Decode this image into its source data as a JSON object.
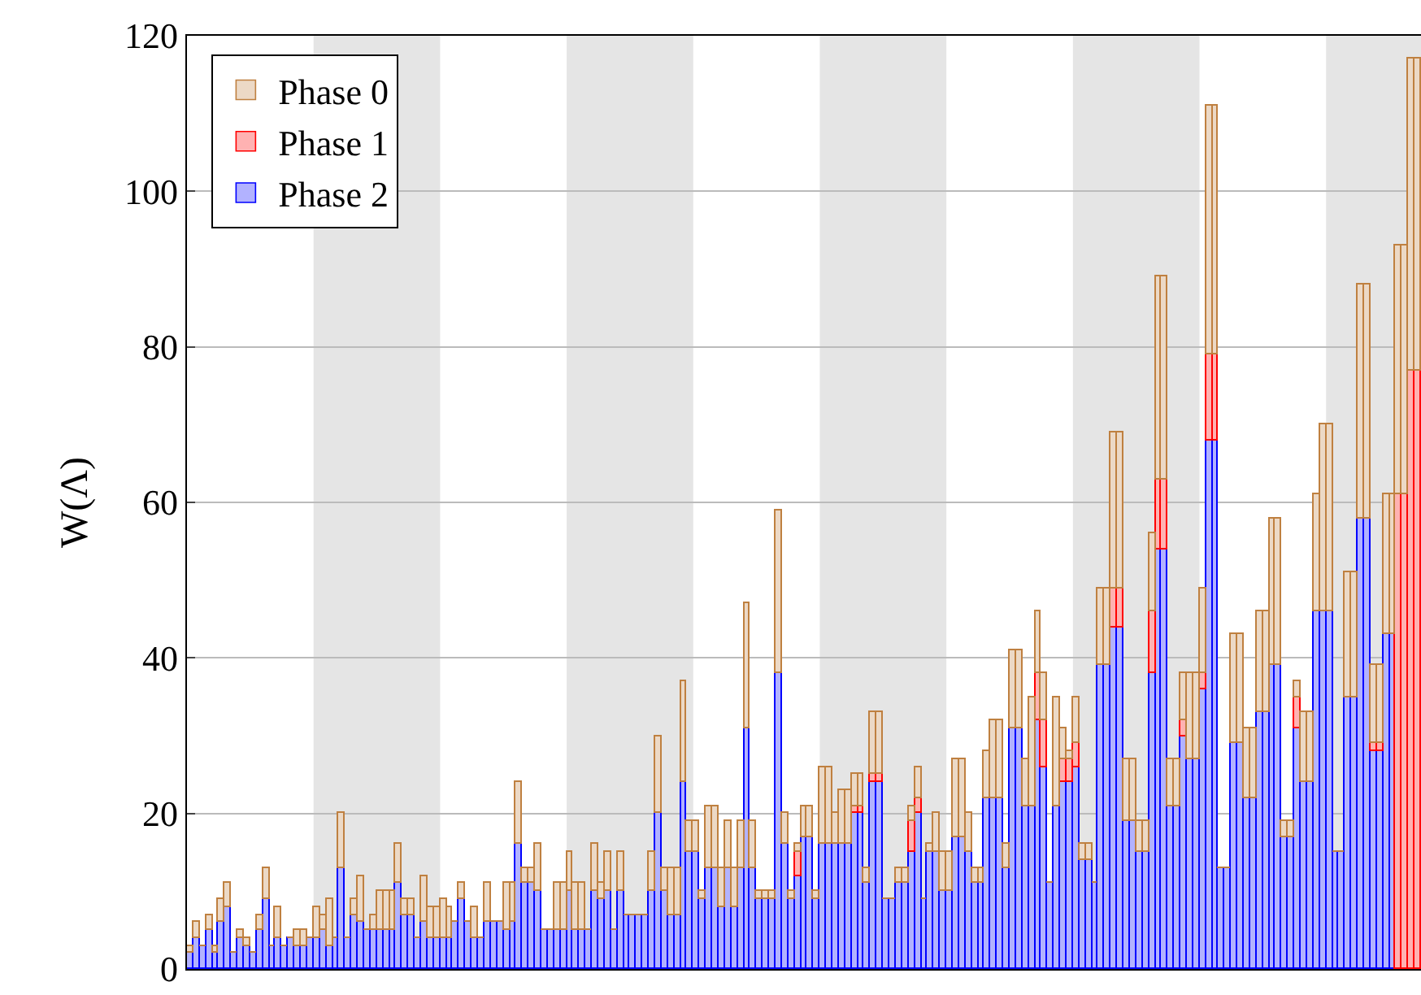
{
  "chart_data": {
    "type": "bar",
    "stacked": true,
    "ylabel": "W(Λ)",
    "categories": [
      null,
      null,
      null,
      null,
      null,
      null,
      null,
      null,
      null,
      null,
      null,
      null,
      null,
      null,
      null,
      null,
      null,
      null,
      null,
      null,
      null,
      null,
      null,
      null,
      null,
      null,
      null,
      null,
      null,
      null,
      null,
      null,
      null,
      null,
      null,
      null,
      null,
      null,
      null,
      null,
      null,
      null,
      null,
      null,
      null,
      null,
      null,
      null,
      null,
      null,
      null,
      null,
      null,
      null,
      null,
      null,
      null,
      null,
      null,
      null,
      null,
      null,
      null,
      null,
      null,
      null,
      null,
      null,
      null,
      null,
      null,
      null,
      null,
      null,
      null,
      null,
      null,
      null,
      null,
      null,
      null,
      null,
      null,
      null,
      null,
      null,
      null,
      null,
      null,
      null,
      null,
      null,
      null,
      null,
      null,
      null,
      null,
      null,
      null,
      null,
      null,
      null,
      null,
      null,
      null,
      null,
      null,
      null,
      null,
      null,
      null,
      null,
      null,
      null,
      null,
      null,
      null,
      null,
      null,
      null,
      null,
      null,
      null,
      null,
      null,
      null,
      null,
      null,
      null,
      null,
      null,
      null,
      null,
      null,
      null,
      null,
      null,
      null,
      null,
      null,
      null,
      null,
      null,
      null,
      null,
      null,
      null,
      null,
      null,
      null,
      null,
      null,
      null,
      null,
      null,
      null,
      null,
      null,
      null,
      null,
      null,
      null,
      null,
      null,
      null,
      null,
      null,
      null,
      null,
      null,
      null,
      null,
      null,
      null,
      null,
      null,
      null,
      null,
      null,
      null,
      null,
      null,
      null,
      null,
      null,
      null,
      null,
      null,
      null,
      null,
      null,
      null,
      null,
      null,
      null
    ],
    "series": [
      {
        "name": "Phase 2",
        "color": "#0000ff",
        "values": [
          2,
          4,
          3,
          5,
          2,
          6,
          8,
          2,
          4,
          3,
          2,
          5,
          9,
          3,
          4,
          3,
          4,
          3,
          3,
          4,
          4,
          5,
          3,
          4,
          13,
          4,
          7,
          6,
          5,
          5,
          5,
          5,
          5,
          11,
          7,
          7,
          4,
          6,
          4,
          4,
          4,
          4,
          6,
          9,
          6,
          4,
          4,
          6,
          6,
          6,
          5,
          6,
          16,
          11,
          11,
          10,
          5,
          5,
          5,
          5,
          10,
          5,
          5,
          5,
          10,
          9,
          10,
          5,
          10,
          7,
          7,
          7,
          7,
          10,
          20,
          10,
          7,
          7,
          24,
          15,
          15,
          9,
          13,
          13,
          8,
          13,
          8,
          13,
          31,
          13,
          9,
          9,
          9,
          38,
          16,
          9,
          12,
          17,
          17,
          9,
          16,
          16,
          16,
          16,
          16,
          20,
          20,
          11,
          24,
          24,
          9,
          9,
          11,
          11,
          15,
          20,
          9,
          15,
          15,
          10,
          10,
          17,
          17,
          15,
          11,
          11,
          22,
          22,
          22,
          13,
          31,
          31,
          21,
          21,
          32,
          26,
          11,
          21,
          24,
          24,
          26,
          14,
          14,
          11,
          39,
          39,
          44,
          44,
          19,
          19,
          15,
          15,
          38,
          54,
          54,
          21,
          21,
          30,
          27,
          27,
          36,
          68,
          68,
          13,
          13,
          29,
          29,
          22,
          22,
          33,
          33,
          39,
          39,
          17,
          17,
          31,
          24,
          24,
          46,
          46,
          46,
          15,
          15,
          35,
          35,
          58,
          58,
          28,
          28,
          43,
          43,
          0,
          0,
          0,
          0
        ]
      },
      {
        "name": "Phase 1",
        "color": "#ff0000",
        "values": [
          0,
          0,
          0,
          0,
          0,
          0,
          0,
          0,
          0,
          0,
          0,
          0,
          0,
          0,
          0,
          0,
          0,
          0,
          0,
          0,
          0,
          0,
          0,
          0,
          0,
          0,
          0,
          0,
          0,
          0,
          0,
          0,
          0,
          0,
          0,
          0,
          0,
          0,
          0,
          0,
          0,
          0,
          0,
          0,
          0,
          0,
          0,
          0,
          0,
          0,
          0,
          0,
          0,
          0,
          0,
          0,
          0,
          0,
          0,
          0,
          0,
          0,
          0,
          0,
          0,
          0,
          0,
          0,
          0,
          0,
          0,
          0,
          0,
          0,
          0,
          0,
          0,
          0,
          0,
          0,
          0,
          0,
          0,
          0,
          0,
          0,
          0,
          0,
          0,
          0,
          0,
          0,
          0,
          0,
          0,
          0,
          3,
          0,
          0,
          0,
          0,
          0,
          0,
          0,
          0,
          1,
          1,
          0,
          1,
          1,
          0,
          0,
          0,
          0,
          4,
          2,
          0,
          0,
          0,
          0,
          0,
          0,
          0,
          0,
          0,
          0,
          0,
          0,
          0,
          0,
          0,
          0,
          0,
          0,
          6,
          6,
          0,
          0,
          3,
          3,
          3,
          0,
          0,
          0,
          0,
          0,
          5,
          5,
          0,
          0,
          0,
          0,
          8,
          9,
          9,
          0,
          0,
          2,
          0,
          0,
          2,
          11,
          11,
          0,
          0,
          0,
          0,
          0,
          0,
          0,
          0,
          0,
          0,
          0,
          0,
          4,
          0,
          0,
          0,
          0,
          0,
          0,
          0,
          0,
          0,
          0,
          0,
          1,
          1,
          0,
          0,
          61,
          61,
          77,
          77
        ]
      },
      {
        "name": "Phase 0",
        "color": "#bf8040",
        "values": [
          1,
          2,
          0,
          2,
          1,
          3,
          3,
          0,
          1,
          1,
          0,
          2,
          4,
          0,
          4,
          0,
          0,
          2,
          2,
          0,
          4,
          2,
          6,
          0,
          7,
          0,
          2,
          6,
          0,
          2,
          5,
          5,
          5,
          5,
          2,
          2,
          0,
          6,
          4,
          4,
          5,
          4,
          0,
          2,
          0,
          4,
          0,
          5,
          0,
          0,
          6,
          5,
          8,
          2,
          2,
          6,
          0,
          0,
          6,
          6,
          5,
          6,
          6,
          0,
          6,
          2,
          5,
          0,
          5,
          0,
          0,
          0,
          0,
          5,
          10,
          3,
          6,
          6,
          13,
          4,
          4,
          1,
          8,
          8,
          5,
          6,
          5,
          6,
          16,
          6,
          1,
          1,
          1,
          21,
          4,
          1,
          1,
          4,
          4,
          1,
          10,
          10,
          4,
          7,
          7,
          4,
          4,
          2,
          8,
          8,
          0,
          0,
          2,
          2,
          2,
          4,
          0,
          1,
          5,
          5,
          5,
          10,
          10,
          5,
          2,
          2,
          6,
          10,
          10,
          3,
          10,
          10,
          6,
          14,
          8,
          6,
          0,
          14,
          4,
          1,
          6,
          2,
          2,
          0,
          10,
          10,
          20,
          20,
          8,
          8,
          4,
          4,
          10,
          26,
          26,
          6,
          6,
          6,
          11,
          11,
          11,
          32,
          32,
          0,
          0,
          14,
          14,
          9,
          9,
          13,
          13,
          19,
          19,
          2,
          2,
          2,
          9,
          9,
          15,
          24,
          24,
          0,
          0,
          16,
          16,
          30,
          30,
          10,
          10,
          18,
          18,
          32,
          32,
          40,
          40
        ]
      }
    ],
    "ylim": [
      0,
      120
    ],
    "yticks": [
      0,
      20,
      40,
      60,
      80,
      100,
      120
    ],
    "grid": "y",
    "legend": "top left"
  }
}
